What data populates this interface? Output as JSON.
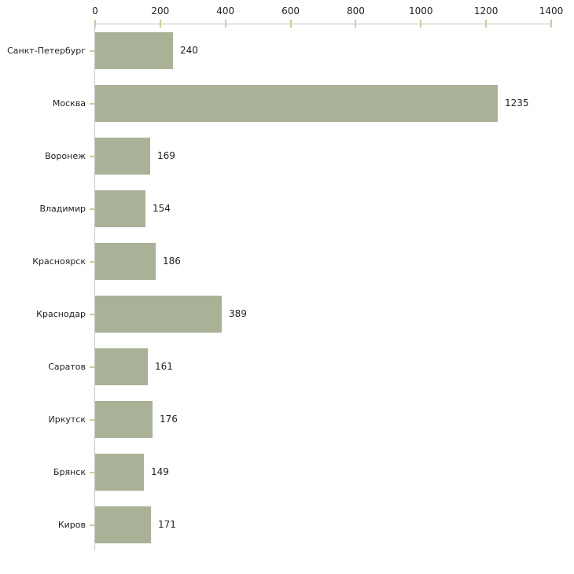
{
  "chart_data": {
    "type": "bar",
    "orientation": "horizontal",
    "title": "",
    "xlabel": "",
    "ylabel": "",
    "categories": [
      "Санкт-Петербург",
      "Москва",
      "Воронеж",
      "Владимир",
      "Красноярск",
      "Краснодар",
      "Саратов",
      "Иркутск",
      "Брянск",
      "Киров"
    ],
    "values": [
      240,
      1235,
      169,
      154,
      186,
      389,
      161,
      176,
      149,
      171
    ],
    "value_labels": [
      "240",
      "1235",
      "169",
      "154",
      "186",
      "389",
      "161",
      "176",
      "149",
      "171"
    ],
    "xlim": [
      0,
      1400
    ],
    "x_ticks": [
      0,
      200,
      400,
      600,
      800,
      1000,
      1200,
      1400
    ],
    "x_tick_labels": [
      "0",
      "200",
      "400",
      "600",
      "800",
      "1000",
      "1200",
      "1400"
    ],
    "grid": false,
    "legend": "none",
    "axis_position": "top",
    "colors": {
      "bar_fill": "#a9b296",
      "axis_line": "#c6c6c6",
      "tick_mark": "#cccc99",
      "text": "#222222",
      "background": "#ffffff"
    }
  }
}
